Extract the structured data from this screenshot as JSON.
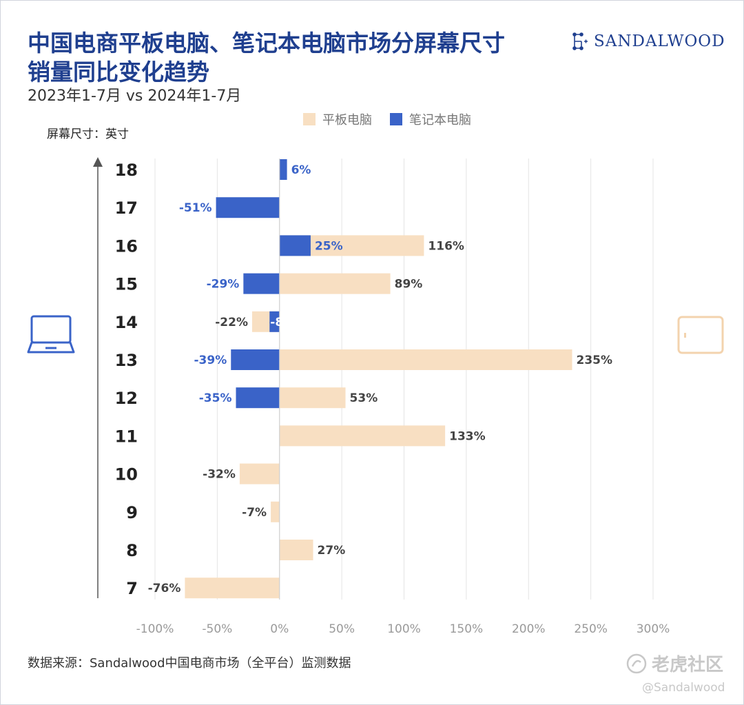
{
  "title_line1": "中国电商平板电脑、笔记本电脑市场分屏幕尺寸",
  "title_line2": "销量同比变化趋势",
  "subtitle": "2023年1-7月 vs 2024年1-7月",
  "brand": "SANDALWOOD",
  "source": "数据来源：Sandalwood中国电商市场（全平台）监测数据",
  "watermark_main": "老虎社区",
  "watermark_handle": "@Sandalwood",
  "icons": {
    "left": "laptop-icon",
    "right": "tablet-icon",
    "brand": "sandalwood-logo-icon",
    "watermark": "tiger-community-icon"
  },
  "colors": {
    "tablet": "#f8dfc2",
    "laptop": "#3a63c8",
    "title": "#1f3f8f"
  },
  "chart_data": {
    "type": "bar",
    "orientation": "horizontal",
    "ylabel": "屏幕尺寸：英寸",
    "categories": [
      "18",
      "17",
      "16",
      "15",
      "14",
      "13",
      "12",
      "11",
      "10",
      "9",
      "8",
      "7"
    ],
    "series": [
      {
        "name": "平板电脑",
        "color": "#f8dfc2",
        "values": [
          null,
          null,
          116,
          89,
          -22,
          235,
          53,
          133,
          -32,
          -7,
          27,
          -76
        ]
      },
      {
        "name": "笔记本电脑",
        "color": "#3a63c8",
        "values": [
          6,
          -51,
          25,
          -29,
          -8,
          -39,
          -35,
          null,
          null,
          null,
          null,
          null
        ]
      }
    ],
    "xlim": [
      -100,
      300
    ],
    "xticks": [
      -100,
      -50,
      0,
      50,
      100,
      150,
      200,
      250,
      300
    ],
    "xtick_labels": [
      "-100%",
      "-50%",
      "0%",
      "50%",
      "100%",
      "150%",
      "200%",
      "250%",
      "300%"
    ],
    "grid": true,
    "legend": "top-center"
  }
}
